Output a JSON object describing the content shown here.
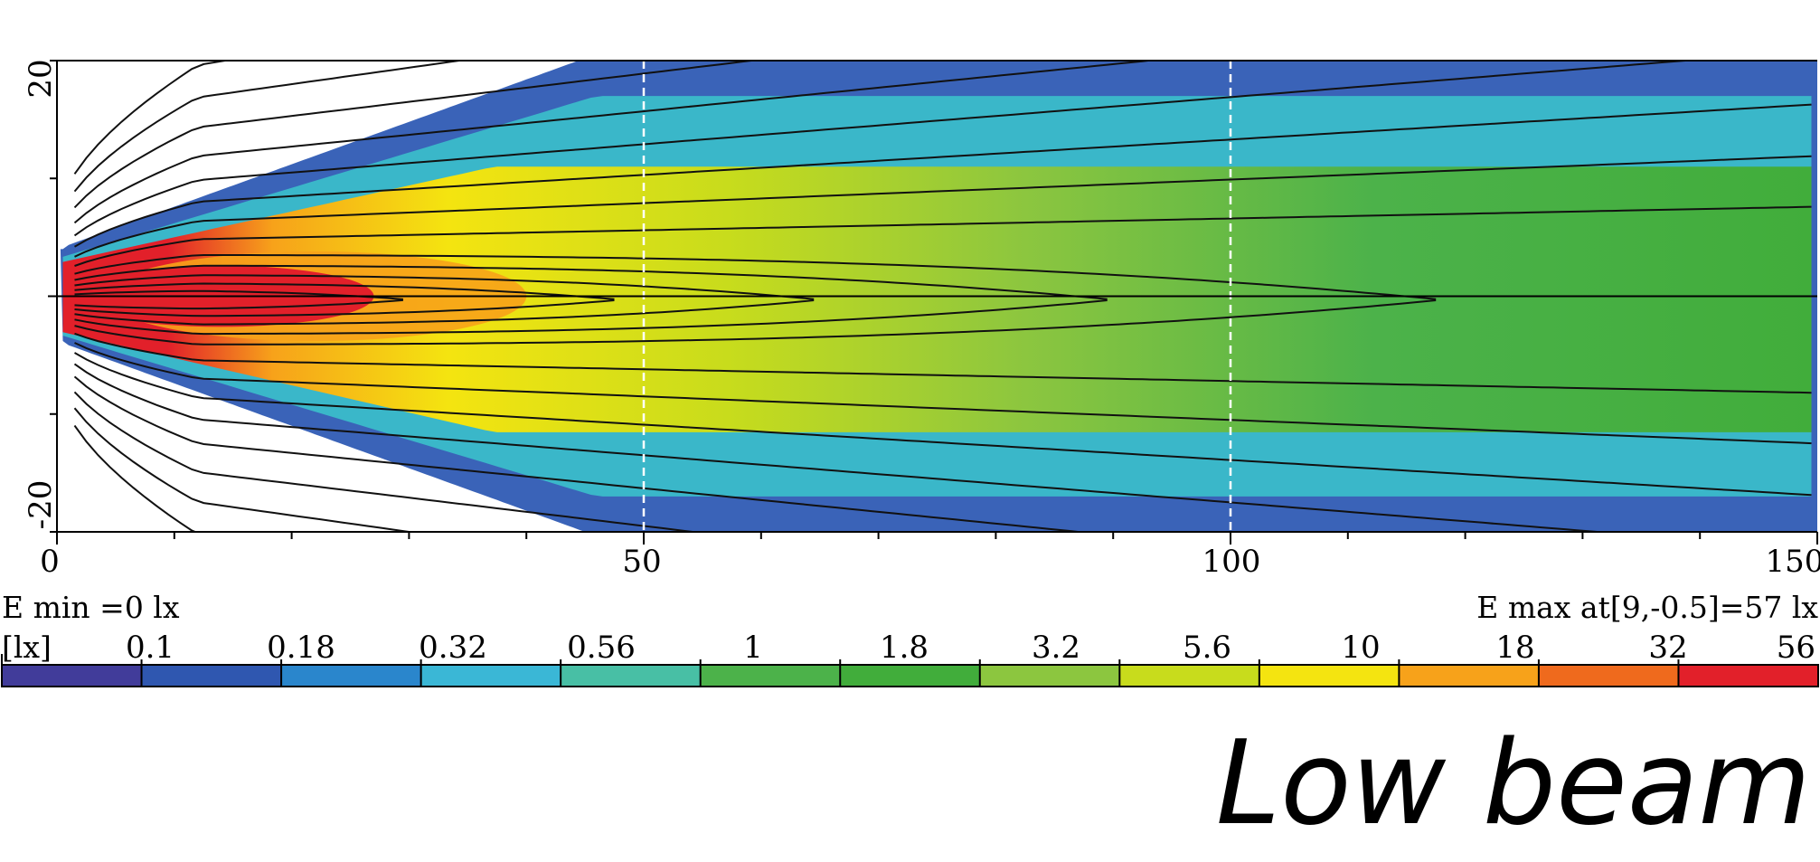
{
  "chart_data": {
    "type": "heatmap",
    "title": "Low beam",
    "xlabel": "",
    "ylabel": "",
    "xlim": [
      0,
      150
    ],
    "ylim": [
      -20,
      20
    ],
    "x_ticks": [
      "0",
      "50",
      "100",
      "150"
    ],
    "y_ticks": [
      "20",
      "-20"
    ],
    "e_min_label": "E min =0 lx",
    "e_max_label": "E max at[9,-0.5]=57 lx",
    "e_max_point": {
      "x": 9,
      "y": -0.5,
      "value": 57
    },
    "unit_label": "[lx]",
    "colorbar_values": [
      "0.1",
      "0.18",
      "0.32",
      "0.56",
      "1",
      "1.8",
      "3.2",
      "5.6",
      "10",
      "18",
      "32",
      "56"
    ],
    "colorbar_colors": [
      "#413c9a",
      "#2f57b0",
      "#2a86cc",
      "#3ab7d6",
      "#48bfa5",
      "#4cb24a",
      "#41ad3b",
      "#8cc63f",
      "#c8dc1c",
      "#f4e410",
      "#f7a21a",
      "#ef6a1d",
      "#e2202a"
    ],
    "contour_levels": [
      0.1,
      0.18,
      0.32,
      0.56,
      1,
      1.8,
      3.2,
      5.6,
      10,
      18,
      32,
      56
    ],
    "grid": "dashed vertical lines at x=50 and x=100; solid horizontal line at y=0",
    "legend": "bottom colorbar"
  }
}
